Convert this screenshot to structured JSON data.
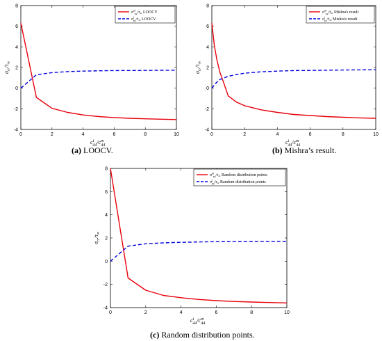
{
  "chart_data": [
    {
      "type": "line",
      "caption_letter": "(a)",
      "caption_text": " LOOCV.",
      "xlabel": "c_44^i/c_44^m",
      "ylabel": "σ_rr/τ_∞",
      "xlim": [
        0,
        10
      ],
      "ylim": [
        -4,
        8
      ],
      "xticks": [
        0,
        2,
        4,
        6,
        8,
        10
      ],
      "yticks": [
        -4,
        -2,
        0,
        2,
        4,
        6,
        8
      ],
      "legend_position": "top-right",
      "series": [
        {
          "name": "σ_zy^m/τ_∞ LOOCV",
          "sym": "σ",
          "sub": "zy",
          "sup": "m",
          "tail": "/τ",
          "tailsub": "∞",
          "label": "LOOCV",
          "color": "#e8000b",
          "dash": "solid",
          "x": [
            0,
            1,
            2,
            3,
            4,
            5,
            6,
            7,
            8,
            9,
            10
          ],
          "y": [
            6.3,
            -0.9,
            -1.95,
            -2.35,
            -2.6,
            -2.75,
            -2.85,
            -2.92,
            -2.97,
            -3.01,
            -3.04
          ]
        },
        {
          "name": "σ_zy^i/τ_∞ LOOCV",
          "sym": "σ",
          "sub": "zy",
          "sup": "i",
          "tail": "/τ",
          "tailsub": "∞",
          "label": "LOOCV",
          "color": "#0000e0",
          "dash": "dashed",
          "x": [
            0,
            1,
            2,
            3,
            4,
            5,
            6,
            7,
            8,
            9,
            10
          ],
          "y": [
            0,
            1.3,
            1.5,
            1.6,
            1.65,
            1.68,
            1.7,
            1.71,
            1.72,
            1.73,
            1.74
          ]
        }
      ]
    },
    {
      "type": "line",
      "caption_letter": "(b)",
      "caption_text": " Mishra’s result.",
      "xlabel": "c_44^i/c_44^m",
      "ylabel": "σ_rr/τ_∞",
      "xlim": [
        0,
        10
      ],
      "ylim": [
        -4,
        8
      ],
      "xticks": [
        0,
        2,
        4,
        6,
        8,
        10
      ],
      "yticks": [
        -4,
        -2,
        0,
        2,
        4,
        6,
        8
      ],
      "legend_position": "top-right",
      "series": [
        {
          "name": "σ_zy^m/τ_∞ Mishra's result",
          "sym": "σ",
          "sub": "zy",
          "sup": "m",
          "tail": "/τ",
          "tailsub": "∞",
          "label": "Mishra's result",
          "color": "#e8000b",
          "dash": "solid",
          "x": [
            0,
            0.15,
            0.3,
            0.5,
            0.75,
            1,
            1.5,
            2,
            3,
            4,
            5,
            6,
            7,
            8,
            9,
            10
          ],
          "y": [
            6.3,
            4.2,
            2.8,
            1.5,
            0.4,
            -0.75,
            -1.35,
            -1.7,
            -2.1,
            -2.35,
            -2.55,
            -2.65,
            -2.75,
            -2.82,
            -2.88,
            -2.92
          ]
        },
        {
          "name": "σ_zy^i/τ_∞ Mishra's result",
          "sym": "σ",
          "sub": "zy",
          "sup": "i",
          "tail": "/τ",
          "tailsub": "∞",
          "label": "Mishra's result",
          "color": "#0000e0",
          "dash": "dashed",
          "x": [
            0,
            0.25,
            0.5,
            1,
            1.5,
            2,
            3,
            4,
            5,
            6,
            7,
            8,
            9,
            10
          ],
          "y": [
            0,
            0.5,
            0.85,
            1.15,
            1.32,
            1.45,
            1.58,
            1.65,
            1.7,
            1.72,
            1.74,
            1.76,
            1.77,
            1.78
          ]
        }
      ]
    },
    {
      "type": "line",
      "caption_letter": "(c)",
      "caption_text": " Random distribution points.",
      "xlabel": "c_44^i/c_44^m",
      "ylabel": "σ_rr/τ_∞",
      "xlim": [
        0,
        10
      ],
      "ylim": [
        -4,
        8
      ],
      "xticks": [
        0,
        2,
        4,
        6,
        8,
        10
      ],
      "yticks": [
        -4,
        -2,
        0,
        2,
        4,
        6,
        8
      ],
      "legend_position": "top-right",
      "series": [
        {
          "name": "σ_zy^m/τ_∞ Random distribution points",
          "sym": "σ",
          "sub": "zy",
          "sup": "m",
          "tail": "/τ",
          "tailsub": "∞",
          "label": "Random distribution points",
          "color": "#e8000b",
          "dash": "solid",
          "x": [
            0,
            1,
            2,
            3,
            4,
            5,
            6,
            7,
            8,
            9,
            10
          ],
          "y": [
            8.0,
            -1.45,
            -2.5,
            -2.95,
            -3.15,
            -3.3,
            -3.4,
            -3.47,
            -3.52,
            -3.56,
            -3.6
          ]
        },
        {
          "name": "σ_zy^i/τ_∞ Random distribution points",
          "sym": "σ",
          "sub": "zy",
          "sup": "i",
          "tail": "/τ",
          "tailsub": "∞",
          "label": "Random distribution points",
          "color": "#0000e0",
          "dash": "dashed",
          "x": [
            0,
            1,
            2,
            3,
            4,
            5,
            6,
            7,
            8,
            9,
            10
          ],
          "y": [
            0,
            1.3,
            1.5,
            1.58,
            1.63,
            1.66,
            1.68,
            1.69,
            1.7,
            1.71,
            1.72
          ]
        }
      ]
    }
  ]
}
